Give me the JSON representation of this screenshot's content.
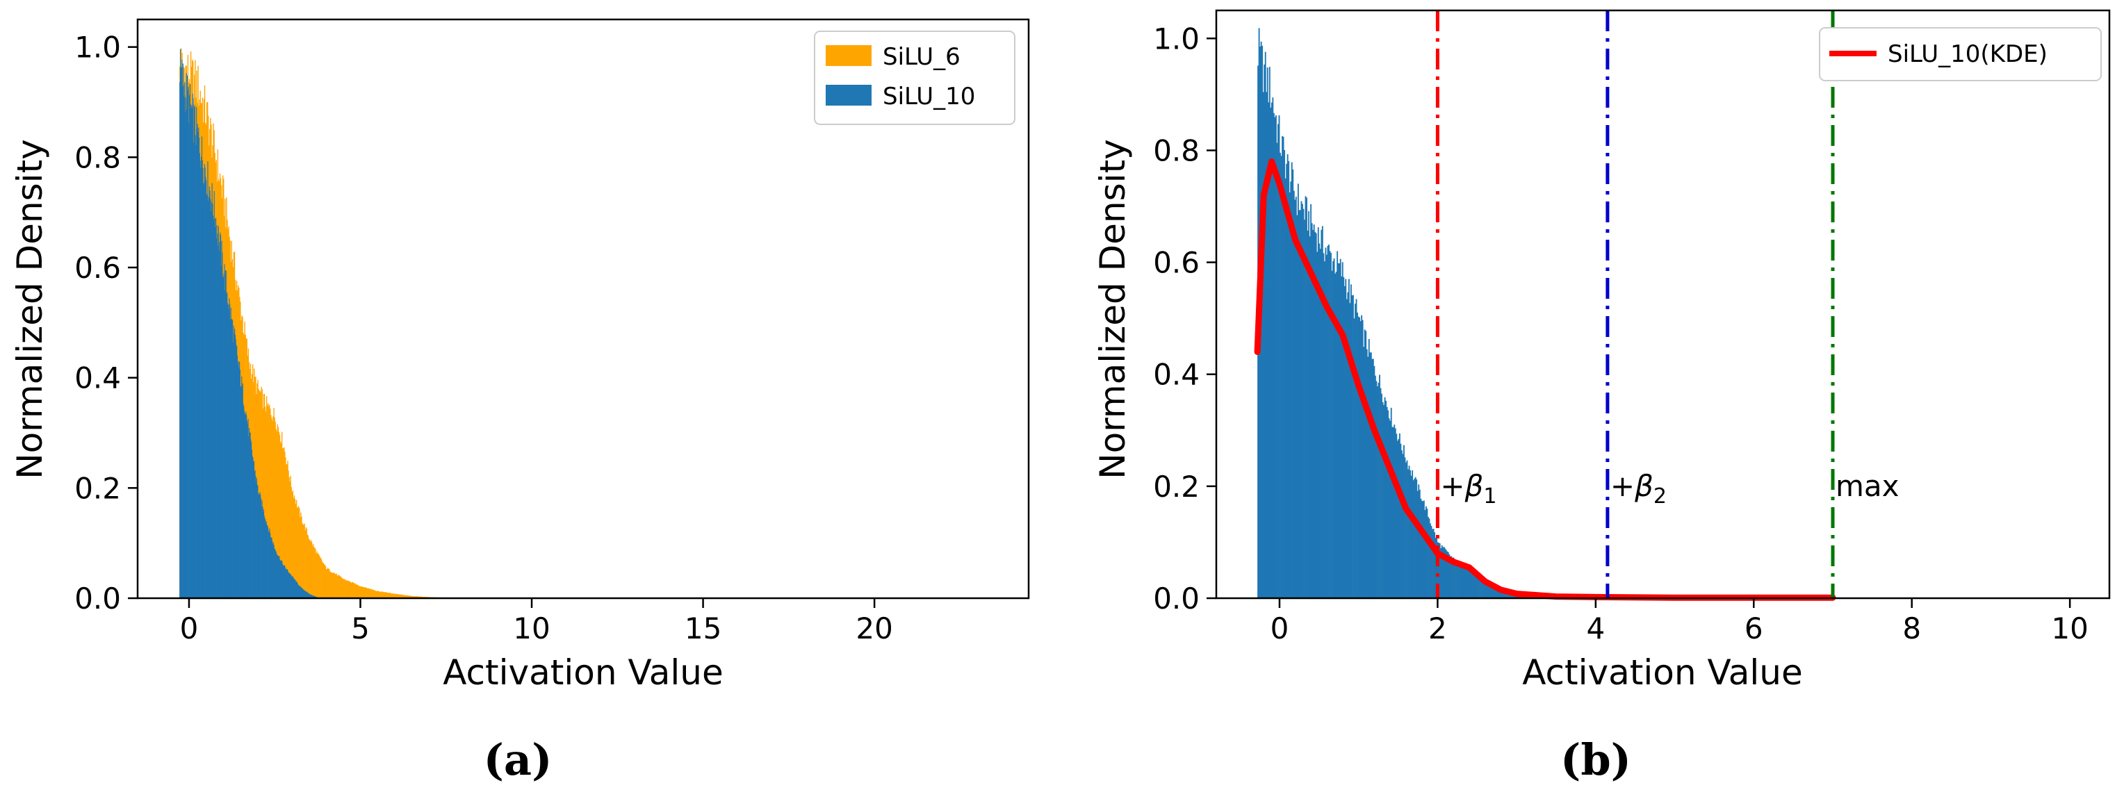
{
  "colors": {
    "silu6": "#FFA500",
    "silu10": "#1F77B4",
    "kde": "#FF0000",
    "beta1": "#FF0000",
    "beta2": "#0000CC",
    "max": "#007700"
  },
  "chart_data": [
    {
      "type": "histogram",
      "caption": "(a)",
      "xlabel": "Activation Value",
      "ylabel": "Normalized Density",
      "xlim": [
        -1.5,
        24.5
      ],
      "ylim": [
        0,
        1.05
      ],
      "xticks": [
        0,
        5,
        10,
        15,
        20
      ],
      "xtick_labels": [
        "0",
        "5",
        "10",
        "15",
        "20"
      ],
      "yticks": [
        0.0,
        0.2,
        0.4,
        0.6,
        0.8,
        1.0
      ],
      "ytick_labels": [
        "0.0",
        "0.2",
        "0.4",
        "0.6",
        "0.8",
        "1.0"
      ],
      "legend_position": "top-right",
      "series": [
        {
          "name": "SiLU_6",
          "x": [
            -0.28,
            0.0,
            0.25,
            0.5,
            0.75,
            1.0,
            1.25,
            1.5,
            1.75,
            2.0,
            2.25,
            2.5,
            2.75,
            3.0,
            3.25,
            3.5,
            3.75,
            4.0,
            4.5,
            5.0,
            5.5,
            6.0,
            6.5,
            7.0,
            7.5,
            7.8
          ],
          "values": [
            0.97,
            0.95,
            0.93,
            0.88,
            0.81,
            0.73,
            0.63,
            0.53,
            0.43,
            0.38,
            0.35,
            0.33,
            0.28,
            0.2,
            0.15,
            0.11,
            0.08,
            0.055,
            0.035,
            0.022,
            0.013,
            0.008,
            0.004,
            0.002,
            0.001,
            0.0
          ]
        },
        {
          "name": "SiLU_10",
          "x": [
            -0.28,
            0.0,
            0.25,
            0.5,
            0.75,
            1.0,
            1.25,
            1.5,
            1.75,
            2.0,
            2.25,
            2.5,
            2.75,
            3.0,
            3.25,
            3.5,
            3.8
          ],
          "values": [
            0.96,
            0.9,
            0.84,
            0.77,
            0.7,
            0.6,
            0.5,
            0.4,
            0.3,
            0.2,
            0.14,
            0.09,
            0.06,
            0.04,
            0.02,
            0.008,
            0.0
          ]
        }
      ]
    },
    {
      "type": "histogram",
      "caption": "(b)",
      "xlabel": "Activation Value",
      "ylabel": "Normalized Density",
      "xlim": [
        -0.8,
        10.5
      ],
      "ylim": [
        0,
        1.05
      ],
      "xticks": [
        0,
        2,
        4,
        6,
        8,
        10
      ],
      "xtick_labels": [
        "0",
        "2",
        "4",
        "6",
        "8",
        "10"
      ],
      "yticks": [
        0.0,
        0.2,
        0.4,
        0.6,
        0.8,
        1.0
      ],
      "ytick_labels": [
        "0.0",
        "0.2",
        "0.4",
        "0.6",
        "0.8",
        "1.0"
      ],
      "legend_position": "top-right",
      "histogram": {
        "name": "SiLU_10",
        "x": [
          -0.28,
          -0.1,
          0.0,
          0.2,
          0.4,
          0.6,
          0.8,
          1.0,
          1.2,
          1.4,
          1.6,
          1.8,
          2.0,
          2.2,
          2.4,
          2.6,
          2.8,
          3.0,
          3.2,
          3.4,
          3.6,
          4.0
        ],
        "values": [
          0.98,
          0.9,
          0.82,
          0.72,
          0.67,
          0.62,
          0.58,
          0.5,
          0.41,
          0.33,
          0.25,
          0.18,
          0.1,
          0.07,
          0.05,
          0.03,
          0.02,
          0.01,
          0.005,
          0.002,
          0.001,
          0.0
        ]
      },
      "series": [
        {
          "name": "SiLU_10(KDE)",
          "x": [
            -0.28,
            -0.2,
            -0.1,
            0.0,
            0.2,
            0.4,
            0.6,
            0.8,
            1.0,
            1.2,
            1.4,
            1.6,
            1.8,
            2.0,
            2.2,
            2.4,
            2.6,
            2.8,
            3.0,
            3.5,
            4.0,
            5.0,
            6.0,
            7.0
          ],
          "values": [
            0.44,
            0.72,
            0.78,
            0.74,
            0.64,
            0.58,
            0.52,
            0.47,
            0.38,
            0.3,
            0.23,
            0.16,
            0.12,
            0.08,
            0.065,
            0.055,
            0.03,
            0.015,
            0.008,
            0.003,
            0.002,
            0.001,
            0.001,
            0.001
          ]
        }
      ],
      "vlines": [
        {
          "x": 2.0,
          "label_base": "+β",
          "label_sub": "1",
          "color_key": "beta1"
        },
        {
          "x": 4.15,
          "label_base": "+β",
          "label_sub": "2",
          "color_key": "beta2"
        },
        {
          "x": 7.0,
          "label_base": "max",
          "label_sub": "",
          "color_key": "max"
        }
      ]
    }
  ]
}
